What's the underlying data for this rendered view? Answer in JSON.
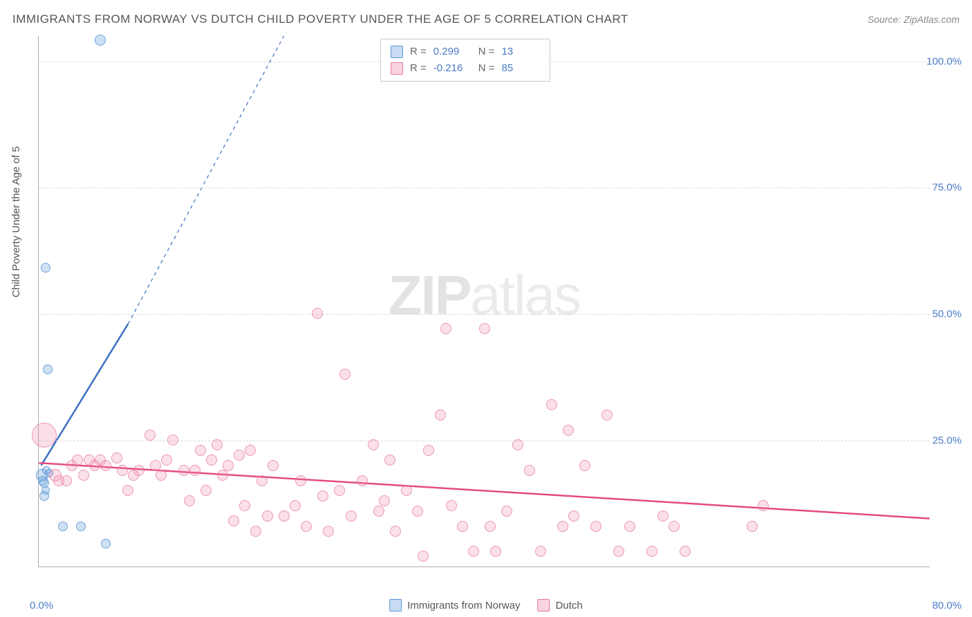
{
  "title": "IMMIGRANTS FROM NORWAY VS DUTCH CHILD POVERTY UNDER THE AGE OF 5 CORRELATION CHART",
  "source": "Source: ZipAtlas.com",
  "watermark_bold": "ZIP",
  "watermark_light": "atlas",
  "y_axis_label": "Child Poverty Under the Age of 5",
  "chart": {
    "type": "scatter",
    "xlim": [
      0,
      80
    ],
    "ylim": [
      0,
      105
    ],
    "x_ticks": [
      {
        "v": 0,
        "label": "0.0%"
      },
      {
        "v": 80,
        "label": "80.0%"
      }
    ],
    "y_ticks": [
      {
        "v": 25,
        "label": "25.0%"
      },
      {
        "v": 50,
        "label": "50.0%"
      },
      {
        "v": 75,
        "label": "75.0%"
      },
      {
        "v": 100,
        "label": "100.0%"
      }
    ],
    "grid_color": "#d8d8d8",
    "background_color": "#ffffff",
    "series": [
      {
        "name": "Immigrants from Norway",
        "color_fill": "rgba(116,168,222,0.35)",
        "color_stroke": "#5a94d6",
        "R": "0.299",
        "N": "13",
        "marker_base_r": 7,
        "trend": {
          "x1": 0.2,
          "y1": 20,
          "x2": 8,
          "y2": 48,
          "color": "#3b6fc0",
          "width": 2.5,
          "extend_dash_to": {
            "x": 22,
            "y": 105
          }
        },
        "points": [
          {
            "x": 0.3,
            "y": 18,
            "r": 9
          },
          {
            "x": 0.4,
            "y": 17,
            "r": 7
          },
          {
            "x": 0.5,
            "y": 16.5,
            "r": 7
          },
          {
            "x": 0.6,
            "y": 15,
            "r": 6
          },
          {
            "x": 0.7,
            "y": 19,
            "r": 6
          },
          {
            "x": 0.9,
            "y": 18.5,
            "r": 6
          },
          {
            "x": 0.5,
            "y": 14,
            "r": 7
          },
          {
            "x": 0.8,
            "y": 39,
            "r": 7
          },
          {
            "x": 0.6,
            "y": 59,
            "r": 7
          },
          {
            "x": 5.5,
            "y": 104,
            "r": 8
          },
          {
            "x": 2.2,
            "y": 8,
            "r": 7
          },
          {
            "x": 3.8,
            "y": 8,
            "r": 7
          },
          {
            "x": 6.0,
            "y": 4.5,
            "r": 7
          }
        ]
      },
      {
        "name": "Dutch",
        "color_fill": "rgba(238,130,165,0.25)",
        "color_stroke": "#e678a0",
        "R": "-0.216",
        "N": "85",
        "marker_base_r": 8,
        "trend": {
          "x1": 0,
          "y1": 20.5,
          "x2": 80,
          "y2": 9.5,
          "color": "#e54b7f",
          "width": 2.5
        },
        "points": [
          {
            "x": 0.5,
            "y": 26,
            "r": 18
          },
          {
            "x": 1.5,
            "y": 18,
            "r": 9
          },
          {
            "x": 1.8,
            "y": 17,
            "r": 8
          },
          {
            "x": 2.5,
            "y": 17,
            "r": 8
          },
          {
            "x": 3,
            "y": 20,
            "r": 8
          },
          {
            "x": 3.5,
            "y": 21,
            "r": 8
          },
          {
            "x": 4,
            "y": 18,
            "r": 8
          },
          {
            "x": 4.5,
            "y": 21,
            "r": 8
          },
          {
            "x": 5,
            "y": 20,
            "r": 8
          },
          {
            "x": 5.5,
            "y": 21,
            "r": 8
          },
          {
            "x": 6,
            "y": 20,
            "r": 8
          },
          {
            "x": 7,
            "y": 21.5,
            "r": 8
          },
          {
            "x": 7.5,
            "y": 19,
            "r": 8
          },
          {
            "x": 8,
            "y": 15,
            "r": 8
          },
          {
            "x": 8.5,
            "y": 18,
            "r": 8
          },
          {
            "x": 9,
            "y": 19,
            "r": 8
          },
          {
            "x": 10,
            "y": 26,
            "r": 8
          },
          {
            "x": 10.5,
            "y": 20,
            "r": 8
          },
          {
            "x": 11,
            "y": 18,
            "r": 8
          },
          {
            "x": 11.5,
            "y": 21,
            "r": 8
          },
          {
            "x": 12,
            "y": 25,
            "r": 8
          },
          {
            "x": 13,
            "y": 19,
            "r": 8
          },
          {
            "x": 13.5,
            "y": 13,
            "r": 8
          },
          {
            "x": 14,
            "y": 19,
            "r": 8
          },
          {
            "x": 14.5,
            "y": 23,
            "r": 8
          },
          {
            "x": 15,
            "y": 15,
            "r": 8
          },
          {
            "x": 15.5,
            "y": 21,
            "r": 8
          },
          {
            "x": 16,
            "y": 24,
            "r": 8
          },
          {
            "x": 16.5,
            "y": 18,
            "r": 8
          },
          {
            "x": 17,
            "y": 20,
            "r": 8
          },
          {
            "x": 17.5,
            "y": 9,
            "r": 8
          },
          {
            "x": 18,
            "y": 22,
            "r": 8
          },
          {
            "x": 18.5,
            "y": 12,
            "r": 8
          },
          {
            "x": 19,
            "y": 23,
            "r": 8
          },
          {
            "x": 19.5,
            "y": 7,
            "r": 8
          },
          {
            "x": 20,
            "y": 17,
            "r": 8
          },
          {
            "x": 20.5,
            "y": 10,
            "r": 8
          },
          {
            "x": 21,
            "y": 20,
            "r": 8
          },
          {
            "x": 22,
            "y": 10,
            "r": 8
          },
          {
            "x": 23,
            "y": 12,
            "r": 8
          },
          {
            "x": 23.5,
            "y": 17,
            "r": 8
          },
          {
            "x": 24,
            "y": 8,
            "r": 8
          },
          {
            "x": 25,
            "y": 50,
            "r": 8
          },
          {
            "x": 25.5,
            "y": 14,
            "r": 8
          },
          {
            "x": 26,
            "y": 7,
            "r": 8
          },
          {
            "x": 27,
            "y": 15,
            "r": 8
          },
          {
            "x": 27.5,
            "y": 38,
            "r": 8
          },
          {
            "x": 28,
            "y": 10,
            "r": 8
          },
          {
            "x": 29,
            "y": 17,
            "r": 8
          },
          {
            "x": 30,
            "y": 24,
            "r": 8
          },
          {
            "x": 30.5,
            "y": 11,
            "r": 8
          },
          {
            "x": 31,
            "y": 13,
            "r": 8
          },
          {
            "x": 31.5,
            "y": 21,
            "r": 8
          },
          {
            "x": 32,
            "y": 7,
            "r": 8
          },
          {
            "x": 33,
            "y": 15,
            "r": 8
          },
          {
            "x": 34,
            "y": 11,
            "r": 8
          },
          {
            "x": 34.5,
            "y": 2,
            "r": 8
          },
          {
            "x": 35,
            "y": 23,
            "r": 8
          },
          {
            "x": 36,
            "y": 30,
            "r": 8
          },
          {
            "x": 36.5,
            "y": 47,
            "r": 8
          },
          {
            "x": 37,
            "y": 12,
            "r": 8
          },
          {
            "x": 38,
            "y": 8,
            "r": 8
          },
          {
            "x": 39,
            "y": 3,
            "r": 8
          },
          {
            "x": 40,
            "y": 47,
            "r": 8
          },
          {
            "x": 40.5,
            "y": 8,
            "r": 8
          },
          {
            "x": 41,
            "y": 3,
            "r": 8
          },
          {
            "x": 42,
            "y": 11,
            "r": 8
          },
          {
            "x": 43,
            "y": 24,
            "r": 8
          },
          {
            "x": 44,
            "y": 19,
            "r": 8
          },
          {
            "x": 45,
            "y": 3,
            "r": 8
          },
          {
            "x": 46,
            "y": 32,
            "r": 8
          },
          {
            "x": 47,
            "y": 8,
            "r": 8
          },
          {
            "x": 47.5,
            "y": 27,
            "r": 8
          },
          {
            "x": 48,
            "y": 10,
            "r": 8
          },
          {
            "x": 49,
            "y": 20,
            "r": 8
          },
          {
            "x": 50,
            "y": 8,
            "r": 8
          },
          {
            "x": 51,
            "y": 30,
            "r": 8
          },
          {
            "x": 52,
            "y": 3,
            "r": 8
          },
          {
            "x": 53,
            "y": 8,
            "r": 8
          },
          {
            "x": 55,
            "y": 3,
            "r": 8
          },
          {
            "x": 56,
            "y": 10,
            "r": 8
          },
          {
            "x": 57,
            "y": 8,
            "r": 8
          },
          {
            "x": 58,
            "y": 3,
            "r": 8
          },
          {
            "x": 64,
            "y": 8,
            "r": 8
          },
          {
            "x": 65,
            "y": 12,
            "r": 8
          }
        ]
      }
    ]
  },
  "legend_bottom": [
    {
      "swatch": "blue",
      "label": "Immigrants from Norway"
    },
    {
      "swatch": "pink",
      "label": "Dutch"
    }
  ],
  "legend_top": [
    {
      "swatch": "blue",
      "R_label": "R =",
      "R": "0.299",
      "N_label": "N =",
      "N": "13"
    },
    {
      "swatch": "pink",
      "R_label": "R =",
      "R": "-0.216",
      "N_label": "N =",
      "N": "85"
    }
  ]
}
